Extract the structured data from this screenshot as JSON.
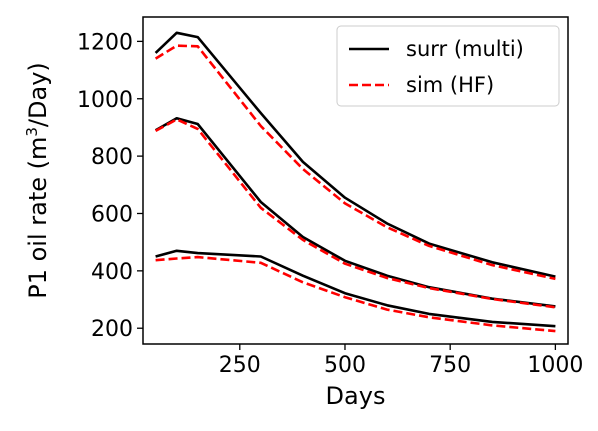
{
  "chart_data": {
    "type": "line",
    "xlabel": "Days",
    "ylabel": {
      "prefix": "P1 oil rate (m",
      "superscript": "3",
      "suffix": "/Day)"
    },
    "xlim": [
      20,
      1030
    ],
    "ylim": [
      145,
      1285
    ],
    "xticks": [
      250,
      500,
      750,
      1000
    ],
    "yticks": [
      200,
      400,
      600,
      800,
      1000,
      1200
    ],
    "grid": false,
    "legend_position": "top-right",
    "legend": [
      {
        "label": "surr (multi)",
        "color": "#000000",
        "style": "solid"
      },
      {
        "label": "sim (HF)",
        "color": "#ff0000",
        "style": "dashed"
      }
    ],
    "series": [
      {
        "legend_index": 0,
        "color": "#000000",
        "style": "solid",
        "x": [
          50,
          100,
          150,
          300,
          400,
          500,
          600,
          700,
          850,
          1000
        ],
        "y": [
          1160,
          1230,
          1215,
          950,
          780,
          655,
          565,
          495,
          430,
          380
        ]
      },
      {
        "legend_index": 1,
        "color": "#ff0000",
        "style": "dashed",
        "x": [
          50,
          100,
          150,
          300,
          400,
          500,
          600,
          700,
          850,
          1000
        ],
        "y": [
          1140,
          1185,
          1183,
          905,
          755,
          635,
          552,
          487,
          420,
          372
        ]
      },
      {
        "legend_index": 0,
        "color": "#000000",
        "style": "solid",
        "x": [
          50,
          100,
          150,
          300,
          400,
          500,
          600,
          700,
          850,
          1000
        ],
        "y": [
          890,
          932,
          912,
          640,
          518,
          435,
          383,
          343,
          303,
          276
        ]
      },
      {
        "legend_index": 1,
        "color": "#ff0000",
        "style": "dashed",
        "x": [
          50,
          100,
          150,
          300,
          400,
          500,
          600,
          700,
          850,
          1000
        ],
        "y": [
          888,
          928,
          895,
          620,
          508,
          425,
          375,
          340,
          302,
          273
        ]
      },
      {
        "legend_index": 0,
        "color": "#000000",
        "style": "solid",
        "x": [
          50,
          100,
          150,
          300,
          400,
          500,
          600,
          700,
          850,
          1000
        ],
        "y": [
          450,
          470,
          462,
          450,
          383,
          322,
          280,
          250,
          222,
          207
        ]
      },
      {
        "legend_index": 1,
        "color": "#ff0000",
        "style": "dashed",
        "x": [
          50,
          100,
          150,
          300,
          400,
          500,
          600,
          700,
          850,
          1000
        ],
        "y": [
          437,
          443,
          448,
          428,
          360,
          308,
          265,
          238,
          210,
          190
        ]
      }
    ]
  }
}
